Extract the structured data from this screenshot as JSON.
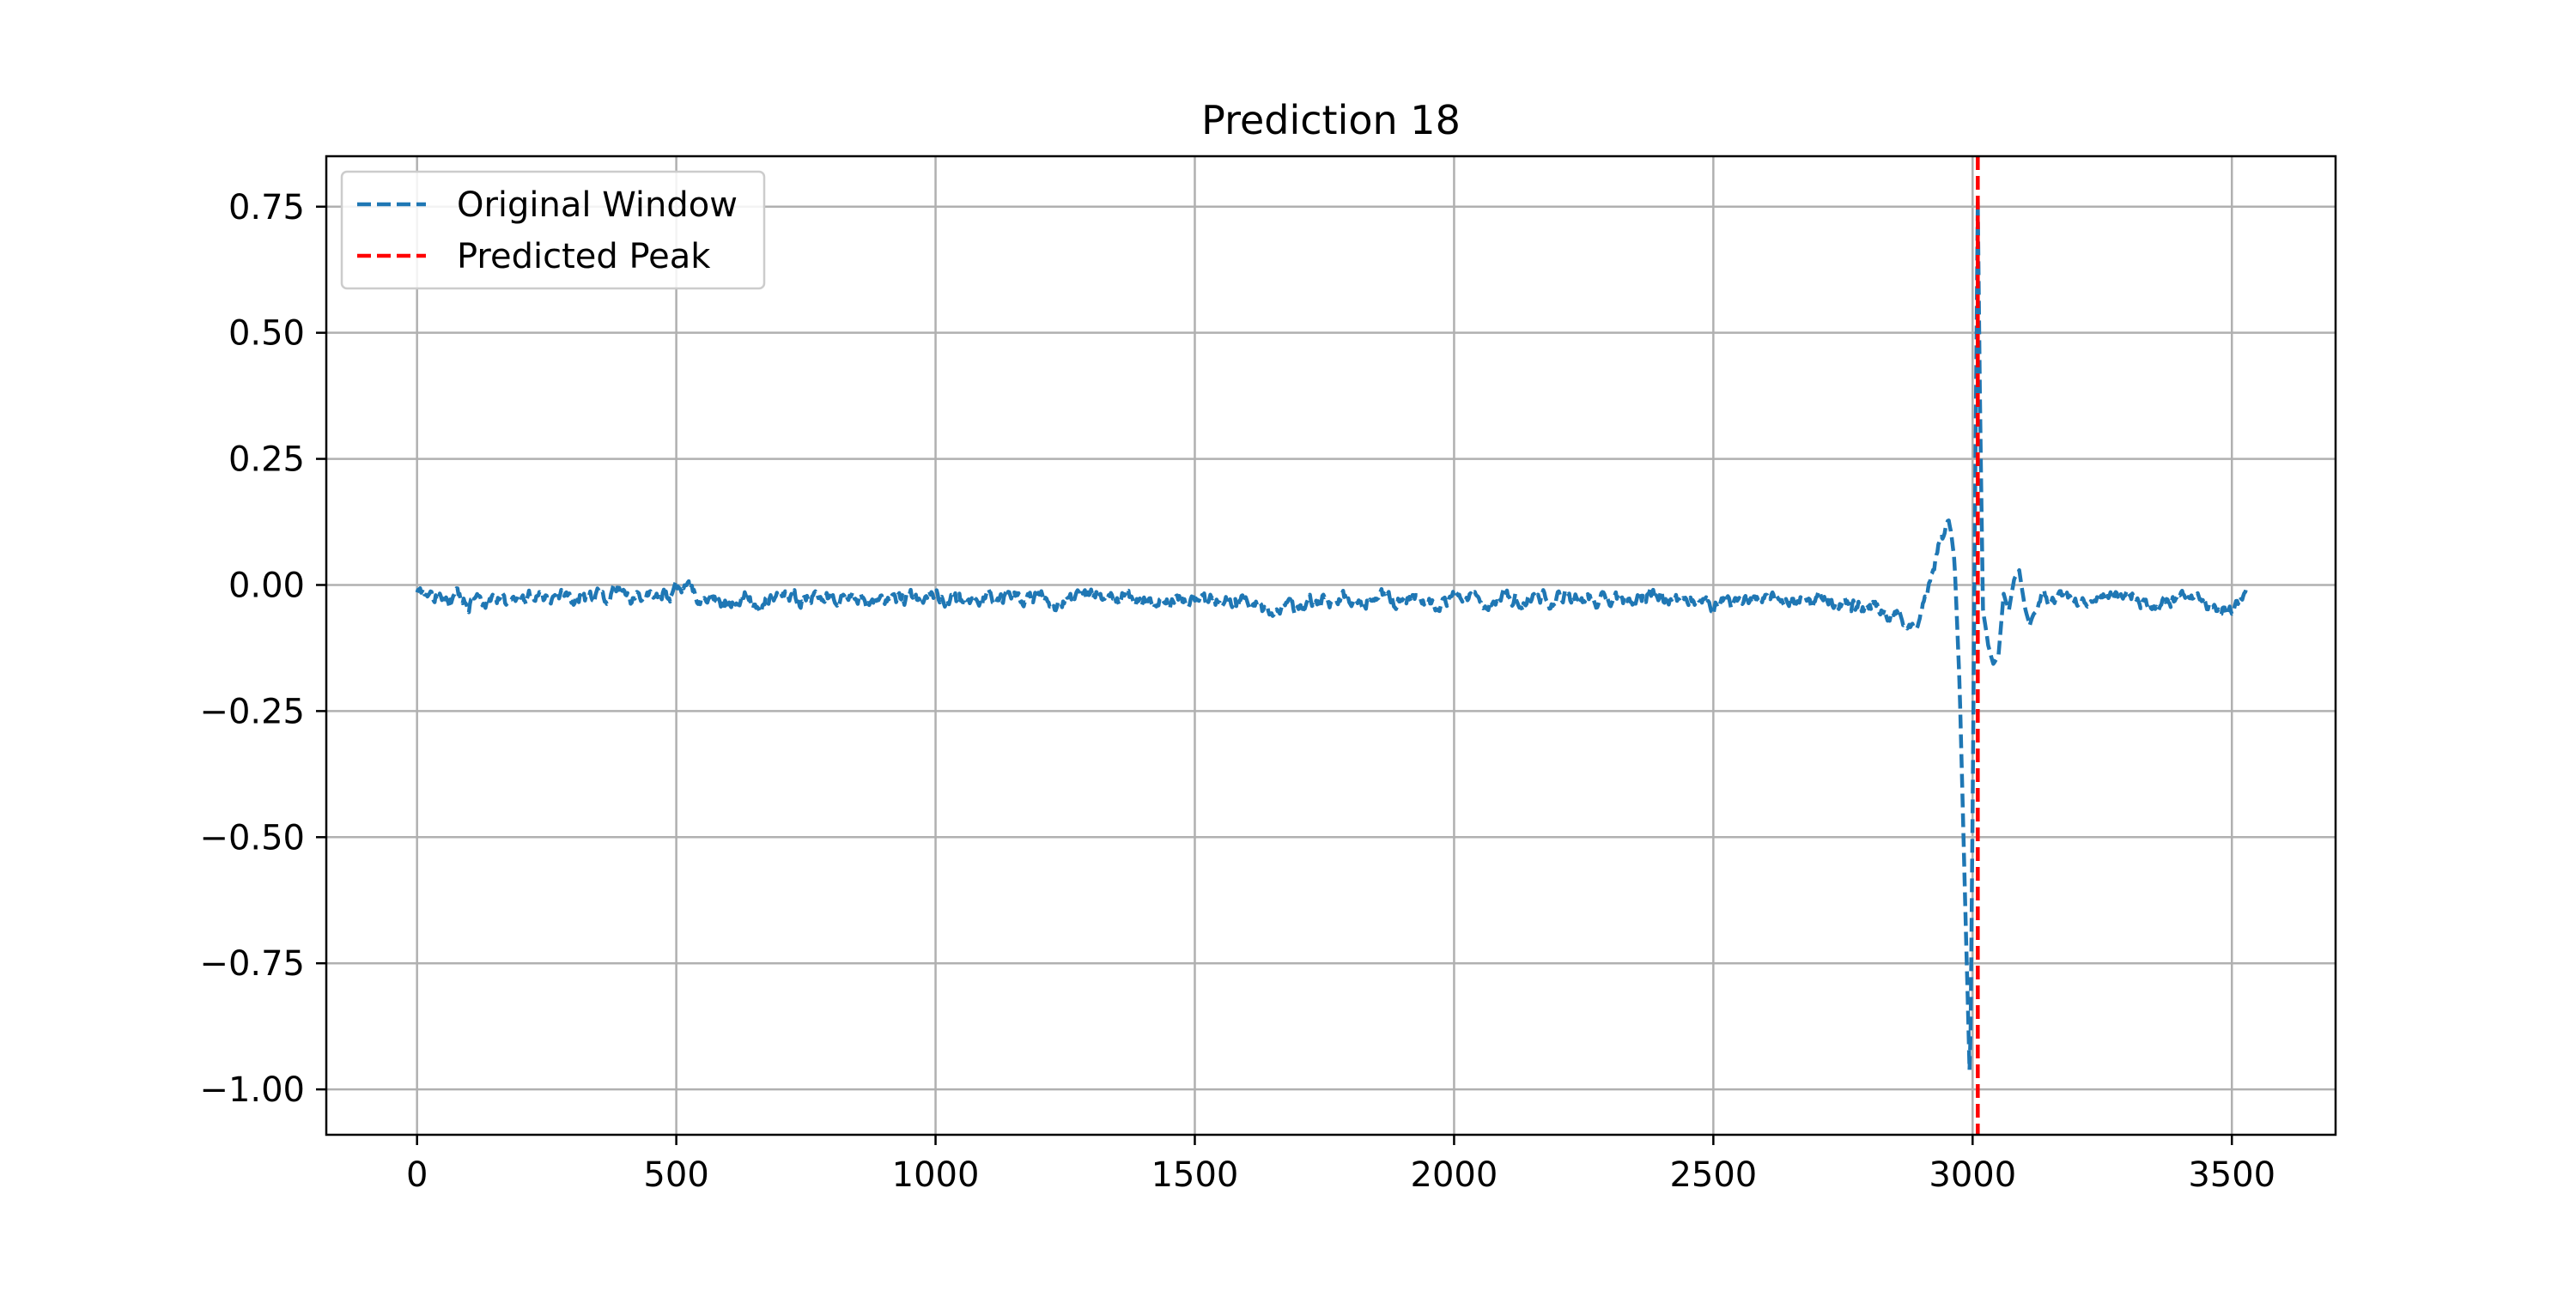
{
  "chart_data": {
    "type": "line",
    "title": "Prediction 18",
    "xlabel": "",
    "ylabel": "",
    "xlim": [
      -175,
      3700
    ],
    "ylim": [
      -1.09,
      0.85
    ],
    "x_ticks": [
      0,
      500,
      1000,
      1500,
      2000,
      2500,
      3000,
      3500
    ],
    "x_tick_labels": [
      "0",
      "500",
      "1000",
      "1500",
      "2000",
      "2500",
      "3000",
      "3500"
    ],
    "y_ticks": [
      0.75,
      0.5,
      0.25,
      0.0,
      -0.25,
      -0.5,
      -0.75,
      -1.0
    ],
    "y_tick_labels": [
      "0.75",
      "0.50",
      "0.25",
      "0.00",
      "−0.25",
      "−0.50",
      "−0.75",
      "−1.00"
    ],
    "grid": true,
    "legend_position": "top-left",
    "series": [
      {
        "name": "Original Window",
        "color": "#1f77b4",
        "style": "dashed",
        "baseline": -0.028,
        "x": [
          0,
          250,
          500,
          750,
          1000,
          1250,
          1500,
          1700,
          1750,
          2000,
          2250,
          2500,
          2700,
          2780,
          2830,
          2860,
          2880,
          2900,
          2920,
          2940,
          2955,
          2965,
          2975,
          2985,
          2995,
          3000,
          3005,
          3010,
          3015,
          3020,
          3030,
          3040,
          3050,
          3060,
          3070,
          3080,
          3090,
          3100,
          3110,
          3120,
          3135,
          3150,
          3165,
          3180,
          3200,
          3250,
          3300,
          3350,
          3400,
          3450,
          3500,
          3520,
          3530
        ],
        "values": [
          -0.025,
          -0.03,
          -0.025,
          -0.03,
          -0.028,
          -0.03,
          -0.028,
          -0.05,
          -0.03,
          -0.03,
          -0.03,
          -0.035,
          -0.035,
          -0.04,
          -0.05,
          -0.06,
          -0.09,
          -0.06,
          0.02,
          0.1,
          0.13,
          0.05,
          -0.2,
          -0.6,
          -1.0,
          -0.45,
          0.2,
          0.76,
          0.3,
          -0.05,
          -0.12,
          -0.16,
          -0.14,
          -0.02,
          -0.05,
          0.01,
          0.03,
          -0.04,
          -0.08,
          -0.05,
          -0.01,
          -0.04,
          -0.03,
          -0.02,
          -0.04,
          -0.03,
          -0.01,
          -0.05,
          -0.02,
          -0.04,
          -0.05,
          -0.02,
          0.0
        ]
      },
      {
        "name": "Predicted Peak",
        "color": "#ff0000",
        "style": "dashed",
        "type": "vline",
        "x": 3010
      }
    ]
  }
}
